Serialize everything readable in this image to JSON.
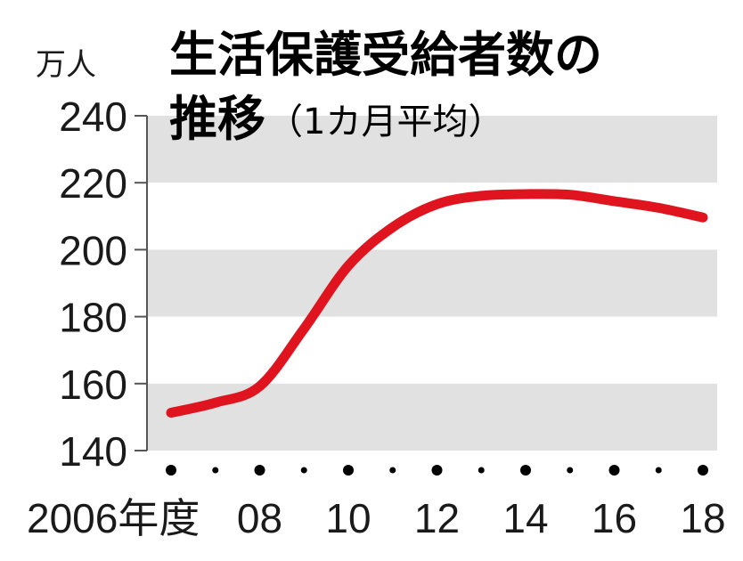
{
  "chart_data": {
    "type": "line",
    "title_line1": "生活保護受給者数の",
    "title_line2": "推移",
    "subtitle": "（1カ月平均）",
    "unit": "万人",
    "x_labels": [
      "2006年度",
      "08",
      "10",
      "12",
      "14",
      "16",
      "18"
    ],
    "x": [
      2006,
      2007,
      2008,
      2009,
      2010,
      2011,
      2012,
      2013,
      2014,
      2015,
      2016,
      2017,
      2018
    ],
    "values": [
      151.3,
      154.3,
      159.2,
      176.4,
      195.2,
      206.7,
      213.6,
      216.1,
      216.6,
      216.4,
      214.5,
      212.5,
      209.6
    ],
    "ylim": [
      140,
      240
    ],
    "yticks": [
      140,
      160,
      180,
      200,
      220,
      240
    ],
    "line_color": "#e0141e",
    "band_color": "#e1e1e1",
    "grid": false
  }
}
